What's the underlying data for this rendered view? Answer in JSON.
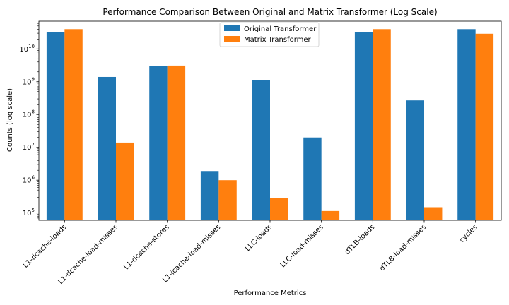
{
  "chart_data": {
    "type": "bar",
    "title": "Performance Comparison Between Original and Matrix Transformer (Log Scale)",
    "xlabel": "Performance Metrics",
    "ylabel": "Counts (log scale)",
    "yscale": "log",
    "ylim": [
      60000,
      70000000000
    ],
    "yticks": [
      {
        "value": 100000,
        "base": "10",
        "exp": "5"
      },
      {
        "value": 1000000,
        "base": "10",
        "exp": "6"
      },
      {
        "value": 10000000,
        "base": "10",
        "exp": "7"
      },
      {
        "value": 100000000,
        "base": "10",
        "exp": "8"
      },
      {
        "value": 1000000000,
        "base": "10",
        "exp": "9"
      },
      {
        "value": 10000000000,
        "base": "10",
        "exp": "10"
      }
    ],
    "categories": [
      "L1-dcache-loads",
      "L1-dcache-load-misses",
      "L1-dcache-stores",
      "L1-icache-load-misses",
      "LLC-loads",
      "LLC-load-misses",
      "dTLB-loads",
      "dTLB-load-misses",
      "cycles"
    ],
    "series": [
      {
        "name": "Original Transformer",
        "color": "#1f77b4",
        "values": [
          32000000000,
          1400000000,
          3000000000,
          1900000,
          1100000000,
          20000000,
          32000000000,
          270000000,
          40000000000
        ]
      },
      {
        "name": "Matrix Transformer",
        "color": "#ff7f0e",
        "values": [
          40000000000,
          14000000,
          3100000000,
          1000000,
          290000,
          115000,
          40000000000,
          150000,
          29000000000
        ]
      }
    ],
    "legend_position": "top-center",
    "grid": false
  }
}
